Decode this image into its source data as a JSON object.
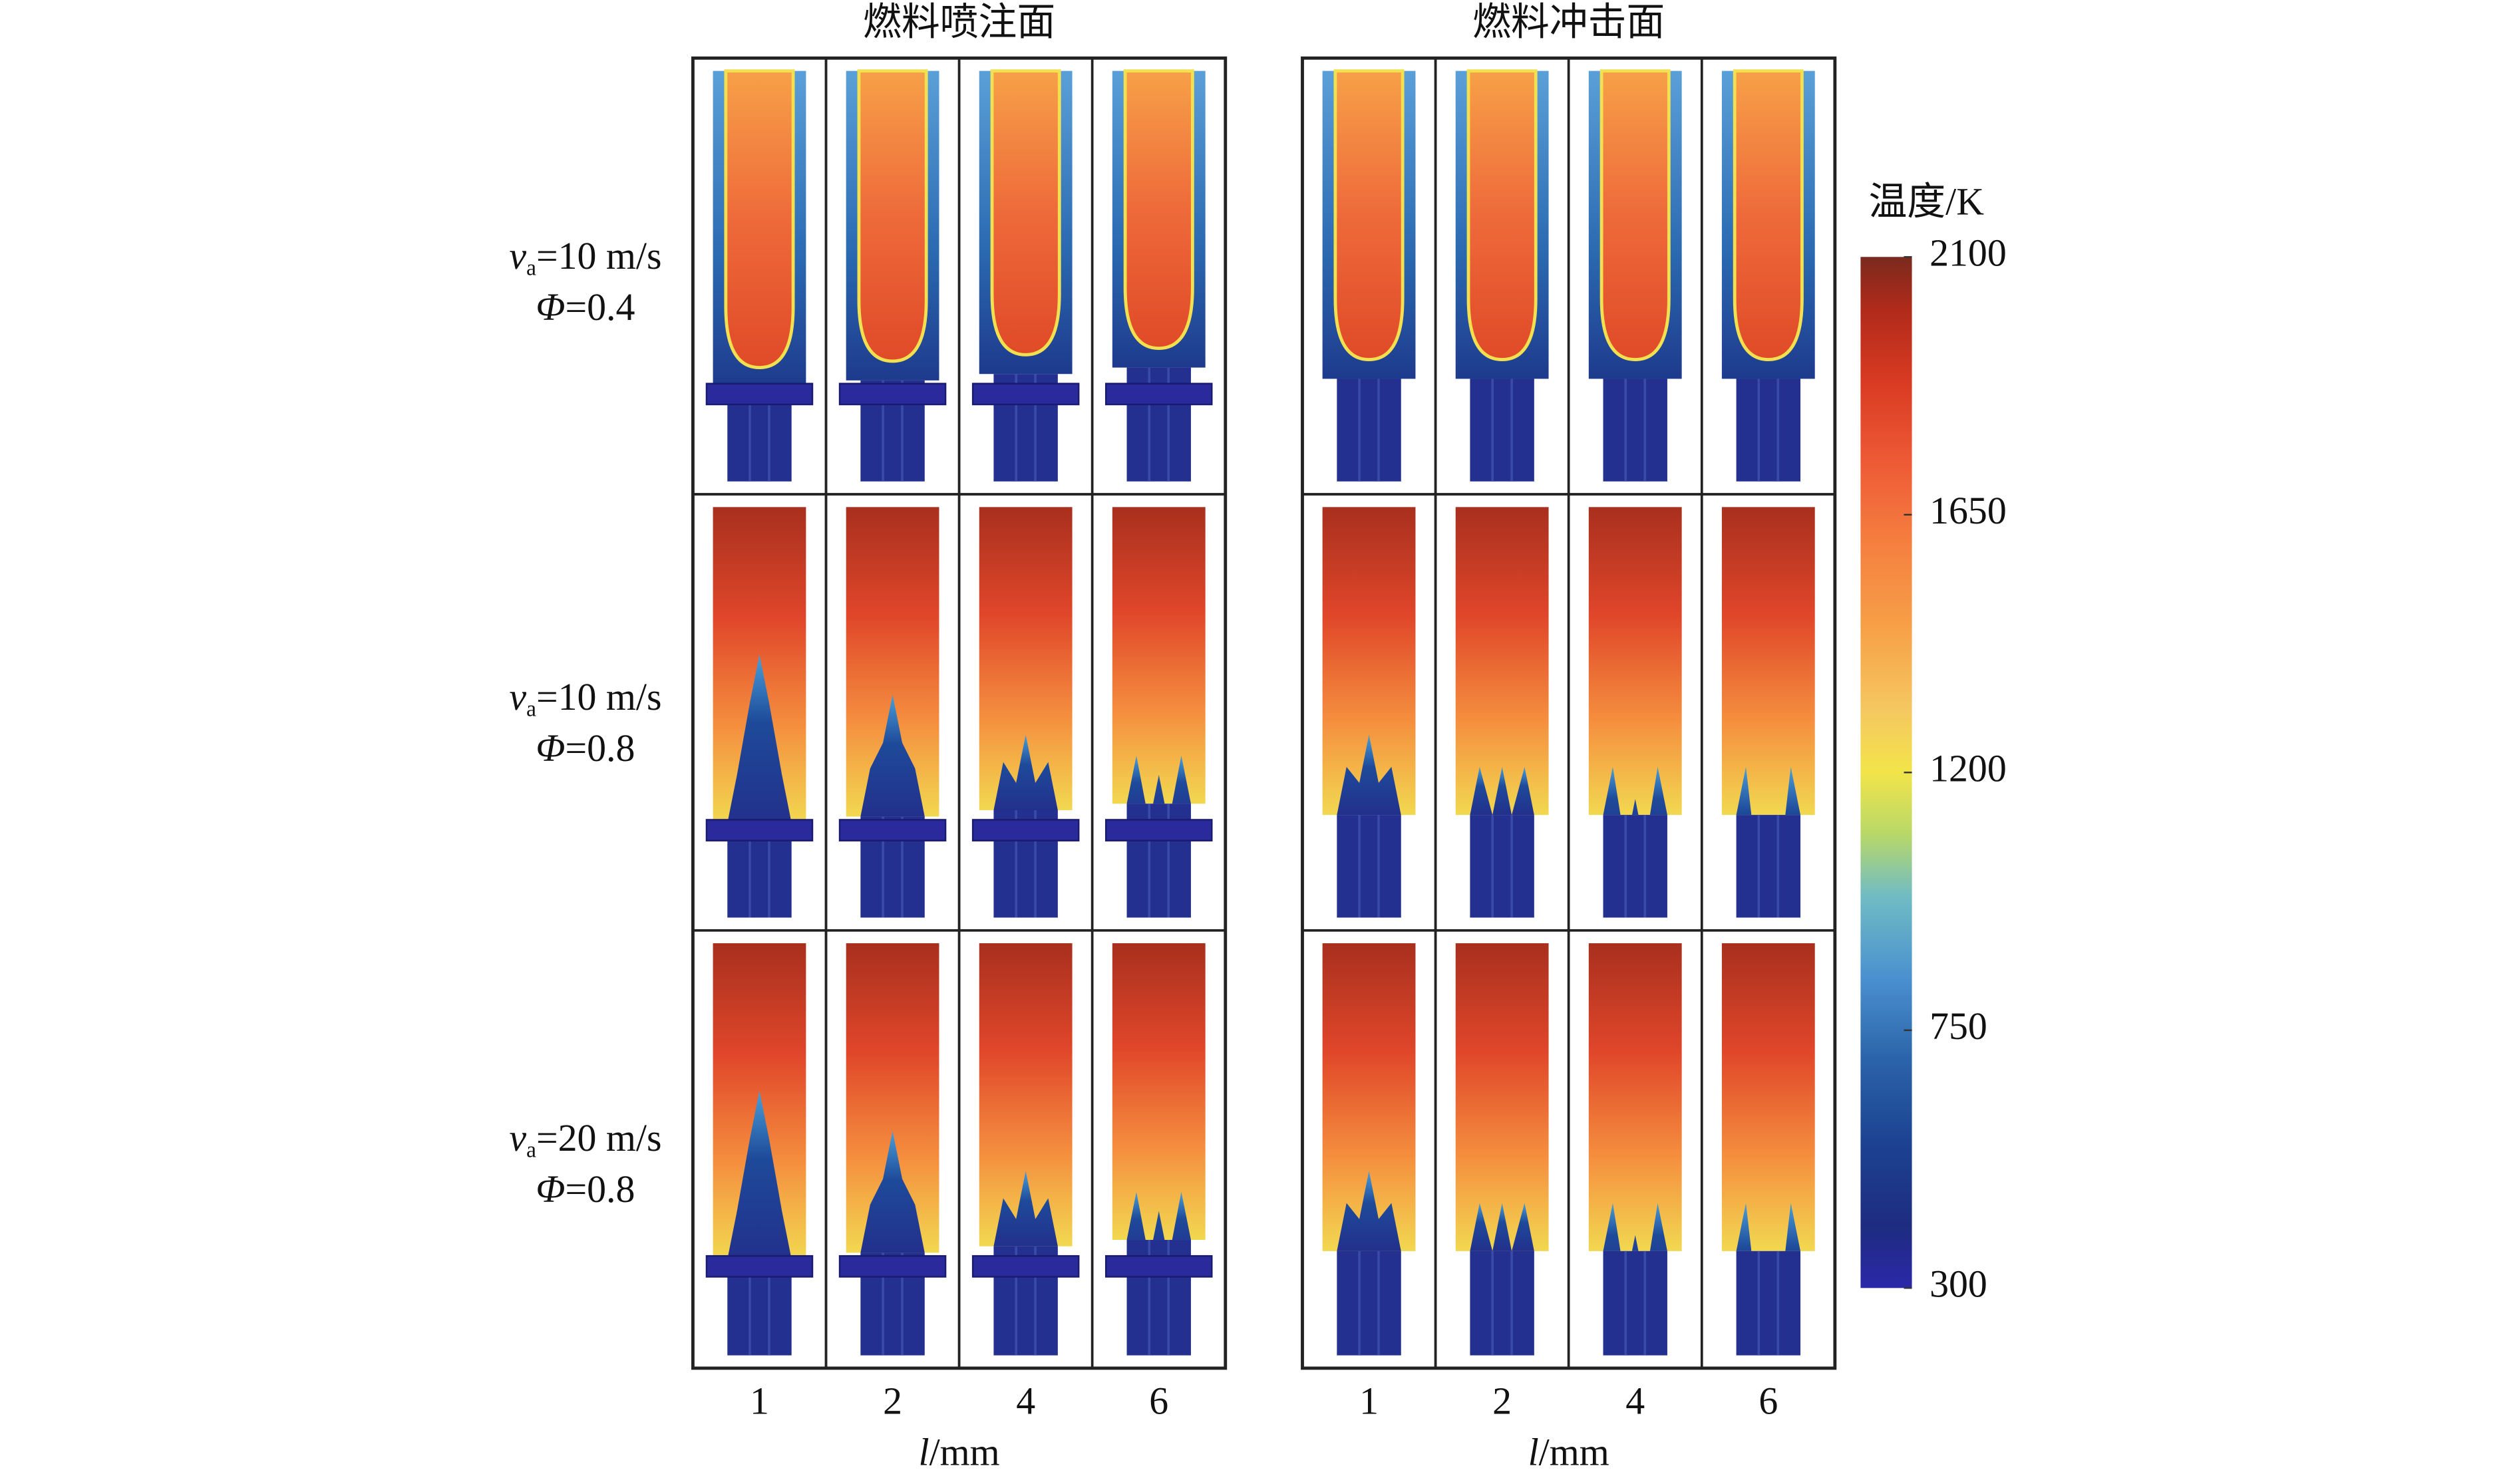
{
  "panels": [
    {
      "title": "燃料喷注面",
      "x_labels": [
        "1",
        "2",
        "4",
        "6"
      ],
      "x_axis_label": {
        "var": "l",
        "unit": "/mm"
      }
    },
    {
      "title": "燃料冲击面",
      "x_labels": [
        "1",
        "2",
        "4",
        "6"
      ],
      "x_axis_label": {
        "var": "l",
        "unit": "/mm"
      }
    }
  ],
  "rows": [
    {
      "velocity": {
        "var": "v",
        "sub": "a",
        "text": "=10 m/s"
      },
      "ratio": {
        "var": "Φ",
        "text": "=0.4"
      }
    },
    {
      "velocity": {
        "var": "v",
        "sub": "a",
        "text": "=10 m/s"
      },
      "ratio": {
        "var": "Φ",
        "text": "=0.8"
      }
    },
    {
      "velocity": {
        "var": "v",
        "sub": "a",
        "text": "=20 m/s"
      },
      "ratio": {
        "var": "Φ",
        "text": "=0.8"
      }
    }
  ],
  "colorbar": {
    "title": "温度/K",
    "range": [
      300,
      2100
    ],
    "ticks": [
      300,
      750,
      1200,
      1650,
      2100
    ]
  }
}
